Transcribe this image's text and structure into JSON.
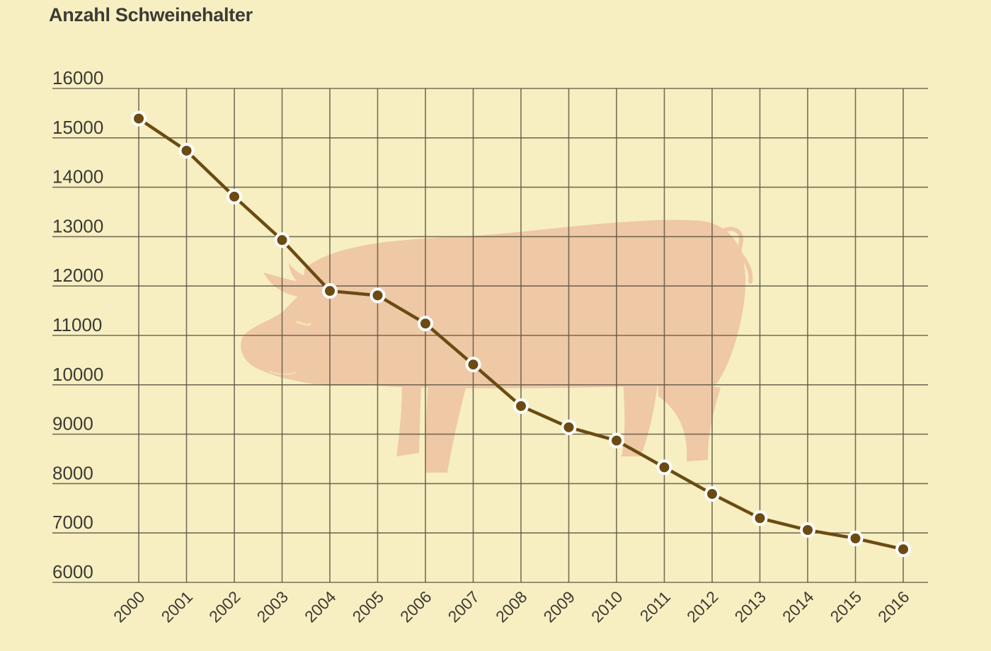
{
  "title": "Anzahl Schweinehalter",
  "colors": {
    "background": "#f7efc1",
    "grid": "#5e5848",
    "line": "#6b4b12",
    "marker_fill": "#6b4b12",
    "marker_stroke": "#ffffff",
    "pig_silhouette": "#efc8a6",
    "text": "#3c3b35"
  },
  "decoration": {
    "background_image": "pig-silhouette"
  },
  "chart_data": {
    "type": "line",
    "title": "Anzahl Schweinehalter",
    "xlabel": "",
    "ylabel": "",
    "x": [
      "2000",
      "2001",
      "2002",
      "2003",
      "2004",
      "2005",
      "2006",
      "2007",
      "2008",
      "2009",
      "2010",
      "2011",
      "2012",
      "2013",
      "2014",
      "2015",
      "2016"
    ],
    "series": [
      {
        "name": "Anzahl Schweinehalter",
        "values": [
          15390,
          14740,
          13810,
          12930,
          11900,
          11810,
          11240,
          10410,
          9570,
          9140,
          8870,
          8330,
          7790,
          7300,
          7060,
          6890,
          6670
        ]
      }
    ],
    "yticks": [
      "16000",
      "15000",
      "14000",
      "13000",
      "12000",
      "11000",
      "10000",
      "9000",
      "8000",
      "7000",
      "6000"
    ],
    "ylim": [
      6000,
      16000
    ],
    "grid": true,
    "legend": "none",
    "markers": true
  }
}
